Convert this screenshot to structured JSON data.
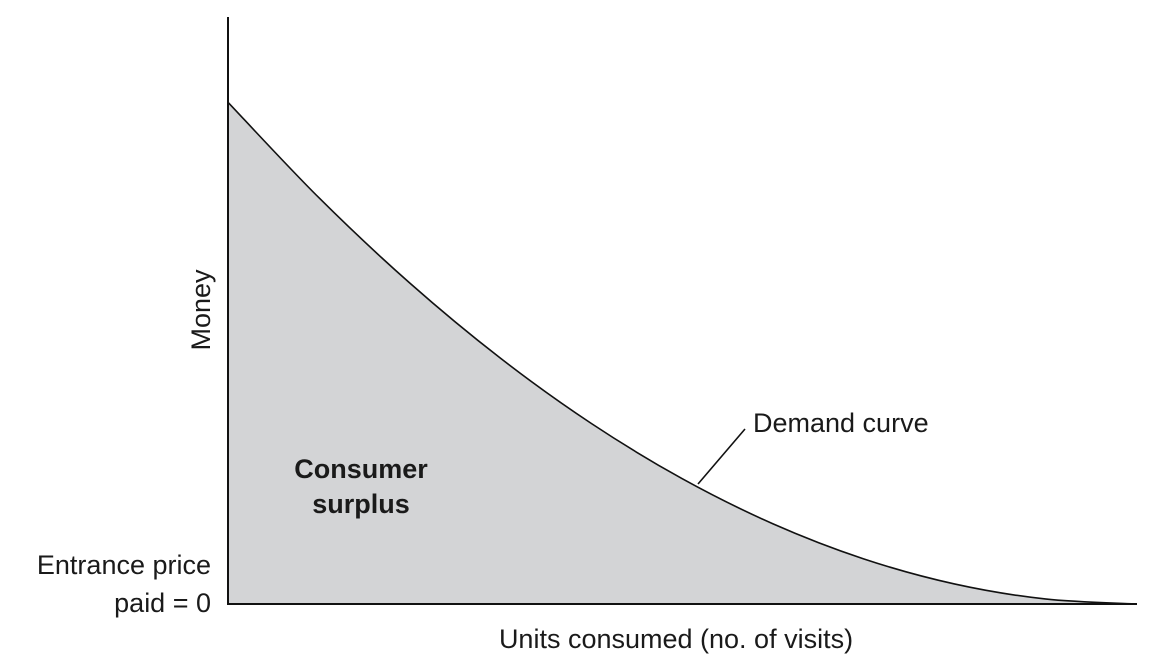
{
  "chart_data": {
    "type": "area",
    "title": "",
    "xlabel": "Units consumed (no. of visits)",
    "ylabel": "Money",
    "x": [
      0,
      0.1,
      0.2,
      0.3,
      0.4,
      0.5,
      0.6,
      0.7,
      0.8,
      0.9,
      1.0
    ],
    "series": [
      {
        "name": "Demand curve",
        "values": [
          1.0,
          0.81,
          0.64,
          0.49,
          0.36,
          0.25,
          0.16,
          0.09,
          0.04,
          0.01,
          0.0
        ]
      }
    ],
    "xlim": [
      0,
      1
    ],
    "ylim": [
      0,
      1.17
    ],
    "grid": false,
    "fill_color": "#d3d4d6",
    "line_color": "#111111",
    "annotations": {
      "demand_curve": "Demand curve",
      "consumer_surplus_line1": "Consumer",
      "consumer_surplus_line2": "surplus",
      "price_line1": "Entrance price",
      "price_line2": "paid = 0"
    }
  }
}
